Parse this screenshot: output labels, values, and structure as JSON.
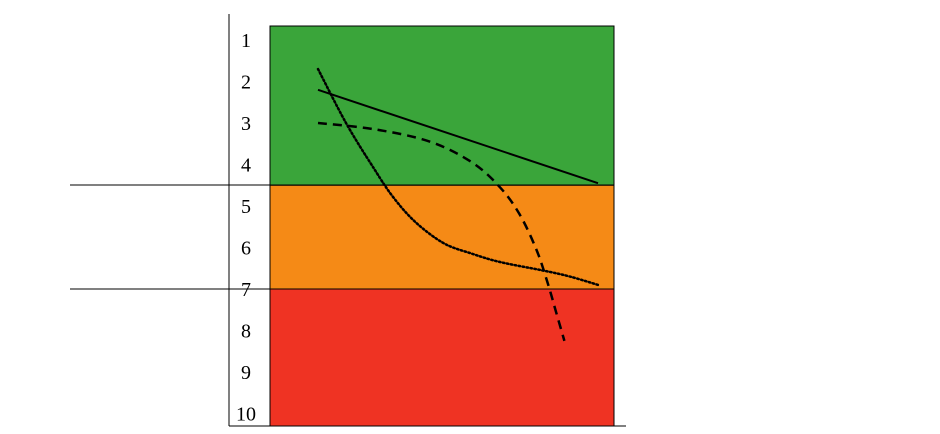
{
  "chart_data": {
    "type": "line",
    "title": "",
    "xlabel": "",
    "ylabel": "",
    "ylim": [
      1,
      10
    ],
    "y_ticks": [
      "1",
      "2",
      "3",
      "4",
      "5",
      "6",
      "7",
      "8",
      "9",
      "10"
    ],
    "y_inverted": true,
    "grid": false,
    "zones": [
      {
        "from": 0.5,
        "to": 4.5,
        "color": "#3aa53a"
      },
      {
        "from": 4.5,
        "to": 7.0,
        "color": "#f58a16"
      },
      {
        "from": 7.0,
        "to": 10.3,
        "color": "#ef3323"
      }
    ],
    "thresholds": [
      4.5,
      7.0
    ],
    "series": [
      {
        "style": "solid",
        "color": "#000000",
        "x": [
          0.0,
          1.0
        ],
        "y": [
          2.2,
          4.45
        ]
      },
      {
        "style": "dashed",
        "color": "#000000",
        "x": [
          0.0,
          0.2,
          0.4,
          0.55,
          0.65,
          0.72,
          0.78,
          0.82,
          0.85,
          0.88
        ],
        "y": [
          3.0,
          3.15,
          3.45,
          3.95,
          4.55,
          5.2,
          6.05,
          6.85,
          7.55,
          8.25
        ]
      },
      {
        "style": "dotted",
        "color": "#000000",
        "x": [
          0.0,
          0.1,
          0.2,
          0.27,
          0.35,
          0.45,
          0.55,
          0.65,
          0.8,
          0.9,
          1.0
        ],
        "y": [
          1.7,
          3.0,
          4.1,
          4.8,
          5.4,
          5.9,
          6.15,
          6.35,
          6.55,
          6.7,
          6.9
        ]
      }
    ]
  }
}
